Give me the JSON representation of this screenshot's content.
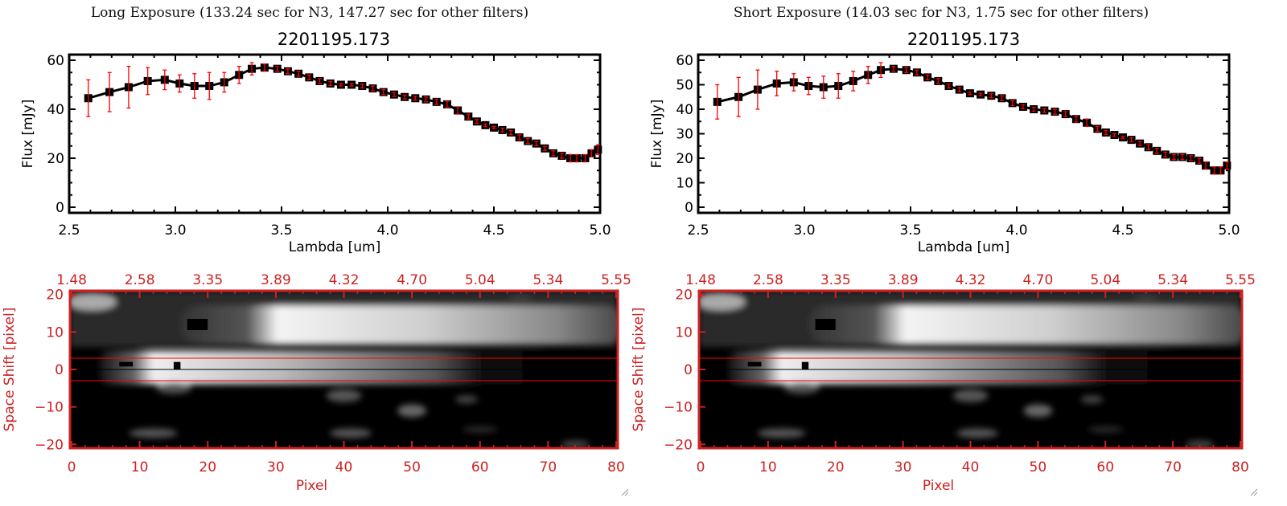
{
  "panels": [
    {
      "title": "Long Exposure (133.24 sec for N3, 147.27 sec for other filters)",
      "object": "2201195.173"
    },
    {
      "title": "Short Exposure (14.03 sec for N3, 1.75 sec for other filters)",
      "object": "2201195.173"
    }
  ],
  "colors": {
    "axis_top": "#000000",
    "axis_bottom": "#cc2222",
    "errorbar": "#ff0000",
    "line": "#000000",
    "extraction_lines": "#ff0000"
  },
  "chart_data": [
    {
      "type": "line",
      "panel": "long",
      "title": "2201195.173",
      "xlabel": "Lambda [um]",
      "ylabel": "Flux [mJy]",
      "xlim": [
        2.5,
        5.0
      ],
      "ylim": [
        -2,
        62
      ],
      "xticks": [
        "2.5",
        "3.0",
        "3.5",
        "4.0",
        "4.5",
        "5.0"
      ],
      "yticks": [
        "0",
        "20",
        "40",
        "60"
      ],
      "x": [
        2.59,
        2.69,
        2.78,
        2.87,
        2.95,
        3.02,
        3.09,
        3.16,
        3.23,
        3.3,
        3.36,
        3.42,
        3.48,
        3.53,
        3.58,
        3.63,
        3.68,
        3.73,
        3.78,
        3.83,
        3.88,
        3.93,
        3.98,
        4.03,
        4.08,
        4.13,
        4.18,
        4.23,
        4.28,
        4.33,
        4.38,
        4.42,
        4.46,
        4.5,
        4.54,
        4.58,
        4.62,
        4.66,
        4.7,
        4.74,
        4.78,
        4.82,
        4.86,
        4.89,
        4.93,
        4.96,
        4.99
      ],
      "y": [
        44.5,
        47,
        49,
        51.5,
        52,
        50.5,
        49.5,
        49.5,
        51,
        54,
        56.5,
        57,
        56.5,
        55.5,
        54.5,
        53,
        51.5,
        50.5,
        50,
        50,
        49.5,
        48.5,
        47,
        46,
        45,
        44.5,
        44,
        43,
        42,
        39.5,
        37,
        35,
        33.5,
        32.5,
        31.5,
        30.5,
        28.5,
        27,
        26,
        24,
        22,
        21,
        20,
        20,
        20,
        22,
        23.5
      ],
      "yerr": [
        7.5,
        8,
        8.5,
        5.5,
        4,
        3.5,
        5,
        5.5,
        4,
        3.5,
        2.5,
        1.5,
        1,
        1,
        1,
        1,
        1,
        0.8,
        0.5,
        0.5,
        0.8,
        1,
        1,
        0.8,
        0.8,
        0.8,
        1,
        1,
        1.2,
        1.5,
        1,
        0.8,
        0.5,
        0.5,
        0.8,
        0.8,
        1,
        1,
        0.8,
        0.8,
        1,
        1,
        1.5,
        1.5,
        1.5,
        1.5,
        2
      ]
    },
    {
      "type": "line",
      "panel": "short",
      "title": "2201195.173",
      "xlabel": "Lambda [um]",
      "ylabel": "Flux [mJy]",
      "xlim": [
        2.5,
        5.0
      ],
      "ylim": [
        -2,
        62
      ],
      "xticks": [
        "2.5",
        "3.0",
        "3.5",
        "4.0",
        "4.5",
        "5.0"
      ],
      "yticks": [
        "0",
        "10",
        "20",
        "30",
        "40",
        "50",
        "60"
      ],
      "x": [
        2.59,
        2.69,
        2.78,
        2.87,
        2.95,
        3.02,
        3.09,
        3.16,
        3.23,
        3.3,
        3.36,
        3.42,
        3.48,
        3.53,
        3.58,
        3.63,
        3.68,
        3.73,
        3.78,
        3.83,
        3.88,
        3.93,
        3.98,
        4.03,
        4.08,
        4.13,
        4.18,
        4.23,
        4.28,
        4.33,
        4.38,
        4.42,
        4.46,
        4.5,
        4.54,
        4.58,
        4.62,
        4.66,
        4.7,
        4.74,
        4.78,
        4.82,
        4.86,
        4.89,
        4.93,
        4.96,
        4.99
      ],
      "y": [
        43,
        45,
        48,
        50.5,
        51,
        49.5,
        49,
        49.5,
        51.5,
        54,
        56,
        56.5,
        56,
        55,
        53,
        51.5,
        49.5,
        48,
        46.5,
        46,
        45.5,
        44.5,
        42.5,
        41,
        40,
        39.5,
        39,
        38,
        36,
        34.5,
        32,
        30.5,
        29.5,
        28.5,
        27.5,
        26,
        24.5,
        23,
        21.5,
        20.5,
        20.5,
        20,
        19,
        17,
        15,
        15,
        17
      ],
      "yerr": [
        7,
        8,
        8,
        5,
        3.5,
        3.5,
        4.5,
        5,
        4,
        3.5,
        3,
        1,
        1,
        1,
        1,
        1,
        0.8,
        0.8,
        0.5,
        0.5,
        0.8,
        1,
        1,
        0.8,
        0.8,
        0.8,
        1,
        1,
        1.2,
        1.5,
        1,
        0.8,
        0.5,
        0.5,
        0.8,
        0.8,
        1,
        1,
        1,
        1,
        1,
        1,
        1,
        1.5,
        1.5,
        1.5,
        1.5
      ]
    },
    {
      "type": "heatmap",
      "panel": "long-2d",
      "xlabel": "Pixel",
      "ylabel": "Space Shift [pixel]",
      "xlim": [
        0,
        80
      ],
      "ylim": [
        -21,
        21
      ],
      "xticks": [
        "0",
        "10",
        "20",
        "30",
        "40",
        "50",
        "60",
        "70",
        "80"
      ],
      "yticks": [
        "-20",
        "-10",
        "0",
        "10",
        "20"
      ],
      "top_ticks": [
        "1.48",
        "2.58",
        "3.35",
        "3.89",
        "4.32",
        "4.70",
        "5.04",
        "5.34",
        "5.55"
      ],
      "extraction_window": [
        -3,
        3
      ]
    },
    {
      "type": "heatmap",
      "panel": "short-2d",
      "xlabel": "Pixel",
      "ylabel": "Space Shift [pixel]",
      "xlim": [
        0,
        80
      ],
      "ylim": [
        -21,
        21
      ],
      "xticks": [
        "0",
        "10",
        "20",
        "30",
        "40",
        "50",
        "60",
        "70",
        "80"
      ],
      "yticks": [
        "-20",
        "-10",
        "0",
        "10",
        "20"
      ],
      "top_ticks": [
        "1.48",
        "2.58",
        "3.35",
        "3.89",
        "4.32",
        "4.70",
        "5.04",
        "5.34",
        "5.55"
      ],
      "extraction_window": [
        -3,
        3
      ]
    }
  ]
}
